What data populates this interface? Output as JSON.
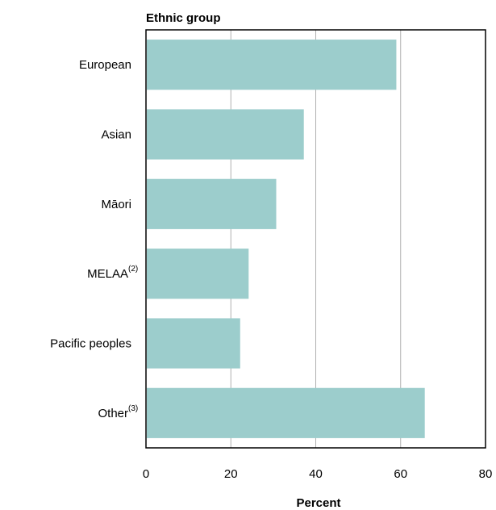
{
  "chart_data": {
    "type": "bar",
    "orientation": "horizontal",
    "title": "Ethnic group",
    "xlabel": "Percent",
    "ylabel": "",
    "categories": [
      "European",
      "Asian",
      "Māori",
      "MELAA",
      "Pacific peoples",
      "Other"
    ],
    "category_notes": [
      "",
      "",
      "",
      "(2)",
      "",
      "(3)"
    ],
    "values": [
      58.8,
      37.0,
      30.5,
      24.0,
      22.0,
      65.5
    ],
    "xlim": [
      0,
      80
    ],
    "xticks": [
      "0",
      "20",
      "40",
      "60",
      "80"
    ],
    "grid": "vertical",
    "legend": "none",
    "bar_color": "#9ccdcc",
    "grid_color": "#b0b0b0",
    "axis_color": "#000000"
  }
}
